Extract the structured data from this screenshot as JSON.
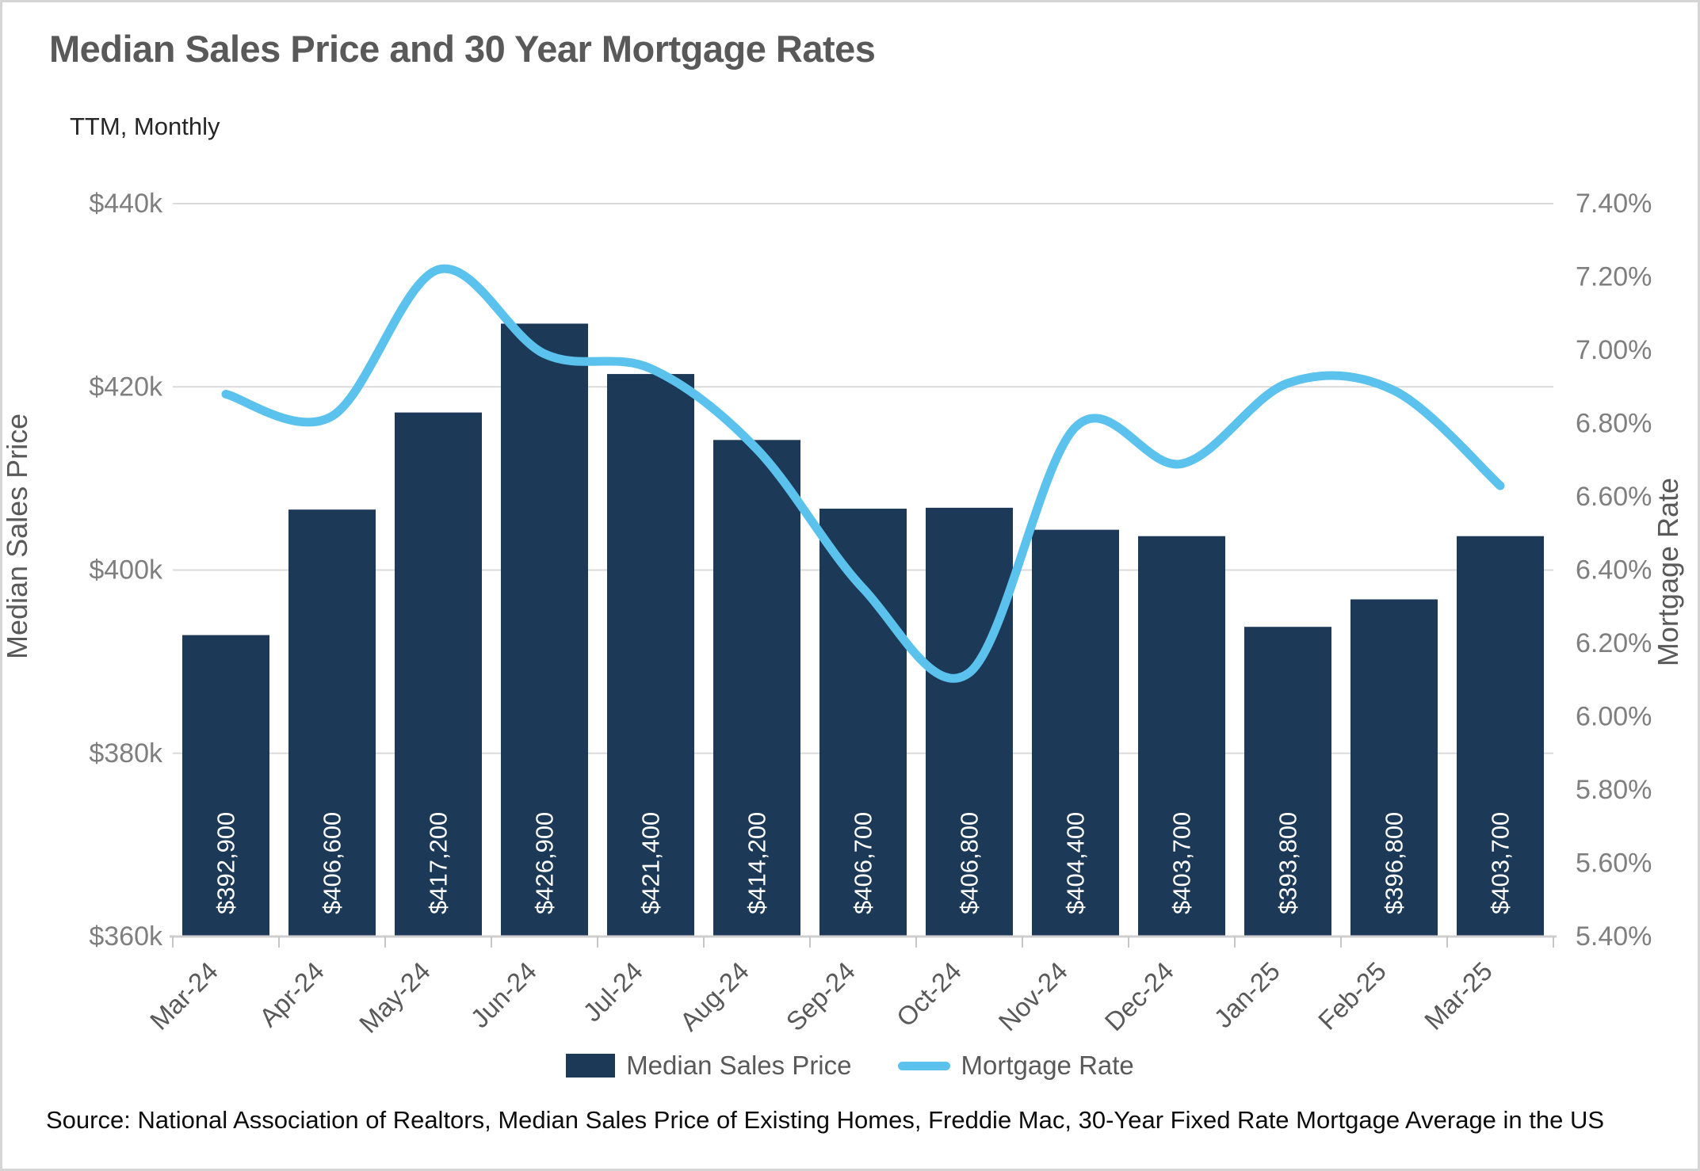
{
  "header": {
    "title": "Median Sales Price and 30 Year Mortgage Rates",
    "subtitle": "TTM, Monthly"
  },
  "legend": {
    "bar_label": "Median Sales Price",
    "line_label": "Mortgage Rate"
  },
  "source_note": "Source: National Association of Realtors, Median Sales Price of Existing Homes, Freddie Mac, 30-Year Fixed Rate Mortgage Average in the US",
  "colors": {
    "bar": "#1c3a57",
    "line": "#5bc2ee",
    "grid": "#dadada",
    "axis_line": "#cfcfcf",
    "tick": "#c6c6c6",
    "axis_text": "#7f7f7f",
    "category_text": "#595959",
    "bar_label_text": "#ffffff"
  },
  "chart_data": {
    "type": "bar+line combo",
    "categories": [
      "Mar-24",
      "Apr-24",
      "May-24",
      "Jun-24",
      "Jul-24",
      "Aug-24",
      "Sep-24",
      "Oct-24",
      "Nov-24",
      "Dec-24",
      "Jan-25",
      "Feb-25",
      "Mar-25"
    ],
    "series": [
      {
        "name": "Median Sales Price",
        "type": "bar",
        "axis": "left",
        "values": [
          392900,
          406600,
          417200,
          426900,
          421400,
          414200,
          406700,
          406800,
          404400,
          403700,
          393800,
          396800,
          403700
        ],
        "data_labels": [
          "$392,900",
          "$406,600",
          "$417,200",
          "$426,900",
          "$421,400",
          "$414,200",
          "$406,700",
          "$406,800",
          "$404,400",
          "$403,700",
          "$393,800",
          "$396,800",
          "$403,700"
        ]
      },
      {
        "name": "Mortgage Rate",
        "type": "line",
        "axis": "right",
        "smoothed": true,
        "values": [
          6.88,
          6.82,
          7.22,
          6.99,
          6.95,
          6.73,
          6.35,
          6.12,
          6.79,
          6.69,
          6.91,
          6.89,
          6.63
        ]
      }
    ],
    "left_axis": {
      "title": "Median Sales Price",
      "min": 360000,
      "max": 440000,
      "step": 20000,
      "tick_labels": [
        "$440k",
        "$420k",
        "$400k",
        "$380k",
        "$360k"
      ]
    },
    "right_axis": {
      "title": "Mortgage Rate",
      "min": 5.4,
      "max": 7.4,
      "step": 0.2,
      "tick_labels": [
        "7.40%",
        "7.20%",
        "7.00%",
        "6.80%",
        "6.60%",
        "6.40%",
        "6.20%",
        "6.00%",
        "5.80%",
        "5.60%",
        "5.40%"
      ]
    },
    "grid": true,
    "legend_position": "bottom"
  }
}
